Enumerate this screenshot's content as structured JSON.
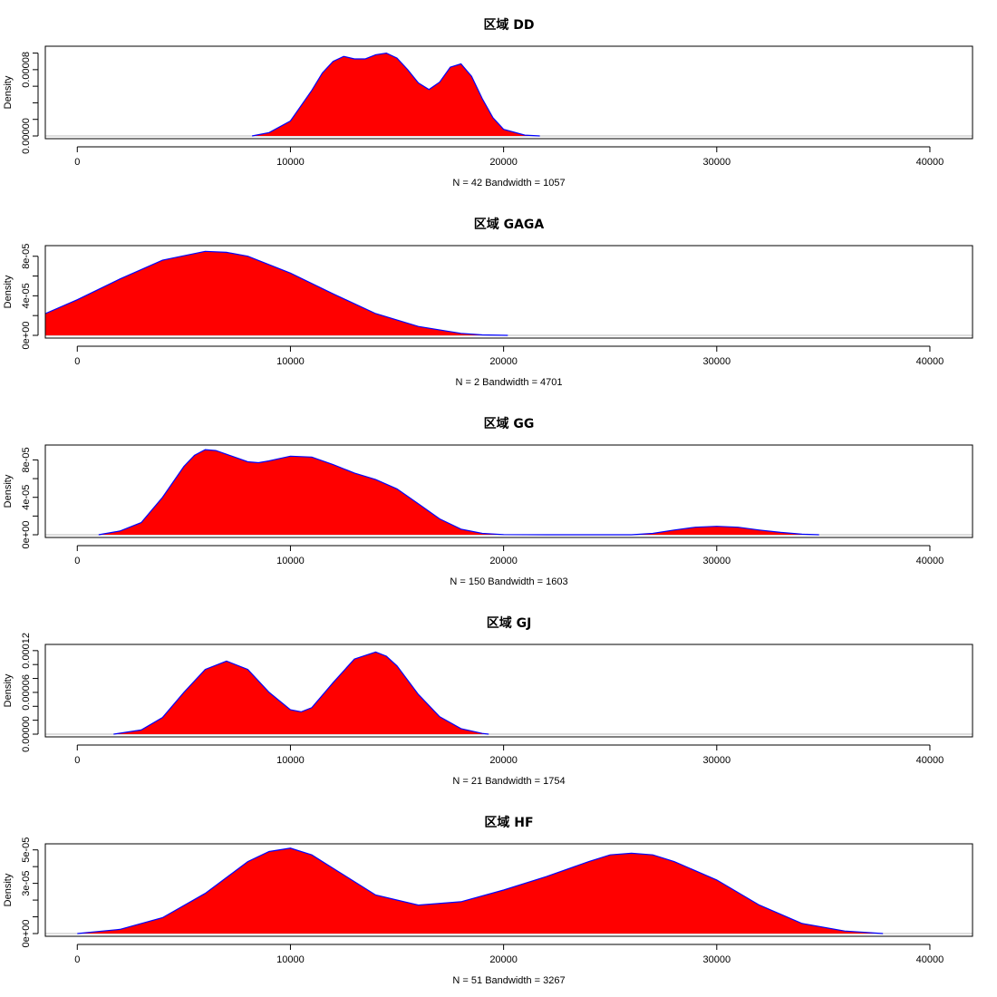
{
  "chart_data": [
    {
      "type": "area",
      "title": "区域 DD",
      "ylabel": "Density",
      "subtitle": "N = 42   Bandwidth = 1057",
      "xlim": [
        -1500,
        42000
      ],
      "ylim": [
        0,
        0.000105
      ],
      "xticks": [
        0,
        10000,
        20000,
        30000,
        40000
      ],
      "xtick_labels": [
        "0",
        "10000",
        "20000",
        "30000",
        "40000"
      ],
      "yticks": [
        0,
        2e-05,
        4e-05,
        6e-05,
        8e-05,
        0.0001
      ],
      "ytick_labels": [
        "0.00000",
        "",
        "",
        "",
        "0.00008",
        ""
      ],
      "grid": false,
      "fill_color": "#ff0000",
      "line_color": "#0000ff",
      "x": [
        8200,
        9000,
        10000,
        11000,
        11500,
        12000,
        12500,
        13000,
        13500,
        14000,
        14500,
        15000,
        15500,
        16000,
        16500,
        17000,
        17500,
        18000,
        18500,
        19000,
        19500,
        20000,
        21000,
        21700
      ],
      "y": [
        0,
        4e-06,
        1.8e-05,
        5.5e-05,
        7.6e-05,
        9e-05,
        9.6e-05,
        9.3e-05,
        9.3e-05,
        9.8e-05,
        0.0001,
        9.4e-05,
        8e-05,
        6.4e-05,
        5.6e-05,
        6.5e-05,
        8.3e-05,
        8.7e-05,
        7.2e-05,
        4.5e-05,
        2.2e-05,
        8e-06,
        1e-06,
        0
      ]
    },
    {
      "type": "area",
      "title": "区域 GAGA",
      "ylabel": "Density",
      "subtitle": "N = 2   Bandwidth = 4701",
      "xlim": [
        -1500,
        42000
      ],
      "ylim": [
        0,
        8.8e-05
      ],
      "xticks": [
        0,
        10000,
        20000,
        30000,
        40000
      ],
      "xtick_labels": [
        "0",
        "10000",
        "20000",
        "30000",
        "40000"
      ],
      "yticks": [
        0,
        2e-05,
        4e-05,
        6e-05,
        8e-05
      ],
      "ytick_labels": [
        "0e+00",
        "",
        "4e-05",
        "",
        "8e-05"
      ],
      "grid": false,
      "fill_color": "#ff0000",
      "line_color": "#0000ff",
      "x": [
        -1500,
        0,
        2000,
        4000,
        6000,
        7000,
        8000,
        10000,
        12000,
        14000,
        16000,
        18000,
        19000,
        20200
      ],
      "y": [
        2.2e-05,
        3.6e-05,
        5.7e-05,
        7.6e-05,
        8.5e-05,
        8.4e-05,
        8e-05,
        6.3e-05,
        4.2e-05,
        2.2e-05,
        9e-06,
        2e-06,
        5e-07,
        0
      ]
    },
    {
      "type": "area",
      "title": "区域 GG",
      "ylabel": "Density",
      "subtitle": "N = 150   Bandwidth = 1603",
      "xlim": [
        -1500,
        42000
      ],
      "ylim": [
        0,
        9.3e-05
      ],
      "xticks": [
        0,
        10000,
        20000,
        30000,
        40000
      ],
      "xtick_labels": [
        "0",
        "10000",
        "20000",
        "30000",
        "40000"
      ],
      "yticks": [
        0,
        2e-05,
        4e-05,
        6e-05,
        8e-05
      ],
      "ytick_labels": [
        "0e+00",
        "",
        "4e-05",
        "",
        "8e-05"
      ],
      "grid": false,
      "fill_color": "#ff0000",
      "line_color": "#0000ff",
      "x": [
        1000,
        2000,
        3000,
        4000,
        5000,
        5500,
        6000,
        6500,
        7000,
        8000,
        8500,
        9000,
        10000,
        11000,
        12000,
        13000,
        14000,
        15000,
        16000,
        17000,
        18000,
        19000,
        20000,
        22000,
        24000,
        26000,
        27000,
        28000,
        29000,
        30000,
        31000,
        32000,
        33000,
        34000,
        34800
      ],
      "y": [
        0,
        4e-06,
        1.3e-05,
        4e-05,
        7.3e-05,
        8.5e-05,
        9.1e-05,
        9e-05,
        8.6e-05,
        7.8e-05,
        7.7e-05,
        7.9e-05,
        8.4e-05,
        8.3e-05,
        7.5e-05,
        6.6e-05,
        5.9e-05,
        4.9e-05,
        3.3e-05,
        1.7e-05,
        6e-06,
        1.5e-06,
        2e-07,
        0,
        0,
        0,
        1.5e-06,
        5e-06,
        8e-06,
        9e-06,
        8e-06,
        5e-06,
        2.5e-06,
        6e-07,
        0
      ]
    },
    {
      "type": "area",
      "title": "区域 GJ",
      "ylabel": "Density",
      "subtitle": "N = 21   Bandwidth = 1754",
      "xlim": [
        -1500,
        42000
      ],
      "ylim": [
        0,
        0.000125
      ],
      "xticks": [
        0,
        10000,
        20000,
        30000,
        40000
      ],
      "xtick_labels": [
        "0",
        "10000",
        "20000",
        "30000",
        "40000"
      ],
      "yticks": [
        0,
        2e-05,
        4e-05,
        6e-05,
        8e-05,
        0.0001,
        0.00012
      ],
      "ytick_labels": [
        "0.00000",
        "",
        "",
        "0.00006",
        "",
        "",
        "0.00012"
      ],
      "grid": false,
      "fill_color": "#ff0000",
      "line_color": "#0000ff",
      "x": [
        1700,
        3000,
        4000,
        5000,
        6000,
        7000,
        8000,
        9000,
        10000,
        10500,
        11000,
        12000,
        13000,
        14000,
        14500,
        15000,
        16000,
        17000,
        18000,
        19000,
        19300
      ],
      "y": [
        0,
        6e-06,
        2.4e-05,
        6e-05,
        9.3e-05,
        0.000105,
        9.3e-05,
        6e-05,
        3.5e-05,
        3.2e-05,
        3.8e-05,
        7.4e-05,
        0.000108,
        0.000118,
        0.000112,
        9.8e-05,
        5.7e-05,
        2.5e-05,
        8e-06,
        1e-06,
        0
      ]
    },
    {
      "type": "area",
      "title": "区域 HF",
      "ylabel": "Density",
      "subtitle": "N = 51   Bandwidth = 3267",
      "xlim": [
        -1500,
        42000
      ],
      "ylim": [
        0,
        5.2e-05
      ],
      "xticks": [
        0,
        10000,
        20000,
        30000,
        40000
      ],
      "xtick_labels": [
        "0",
        "10000",
        "20000",
        "30000",
        "40000"
      ],
      "yticks": [
        0,
        1e-05,
        2e-05,
        3e-05,
        4e-05,
        5e-05
      ],
      "ytick_labels": [
        "0e+00",
        "",
        "",
        "3e-05",
        "",
        "5e-05"
      ],
      "grid": false,
      "fill_color": "#ff0000",
      "line_color": "#0000ff",
      "x": [
        0,
        2000,
        4000,
        6000,
        8000,
        9000,
        10000,
        11000,
        12000,
        14000,
        16000,
        18000,
        20000,
        22000,
        24000,
        25000,
        26000,
        27000,
        28000,
        30000,
        32000,
        34000,
        36000,
        37800
      ],
      "y": [
        0,
        2.5e-06,
        9.5e-06,
        2.4e-05,
        4.3e-05,
        4.9e-05,
        5.1e-05,
        4.7e-05,
        3.9e-05,
        2.3e-05,
        1.7e-05,
        1.9e-05,
        2.6e-05,
        3.4e-05,
        4.3e-05,
        4.7e-05,
        4.8e-05,
        4.7e-05,
        4.3e-05,
        3.2e-05,
        1.7e-05,
        6e-06,
        1.5e-06,
        0
      ]
    }
  ]
}
